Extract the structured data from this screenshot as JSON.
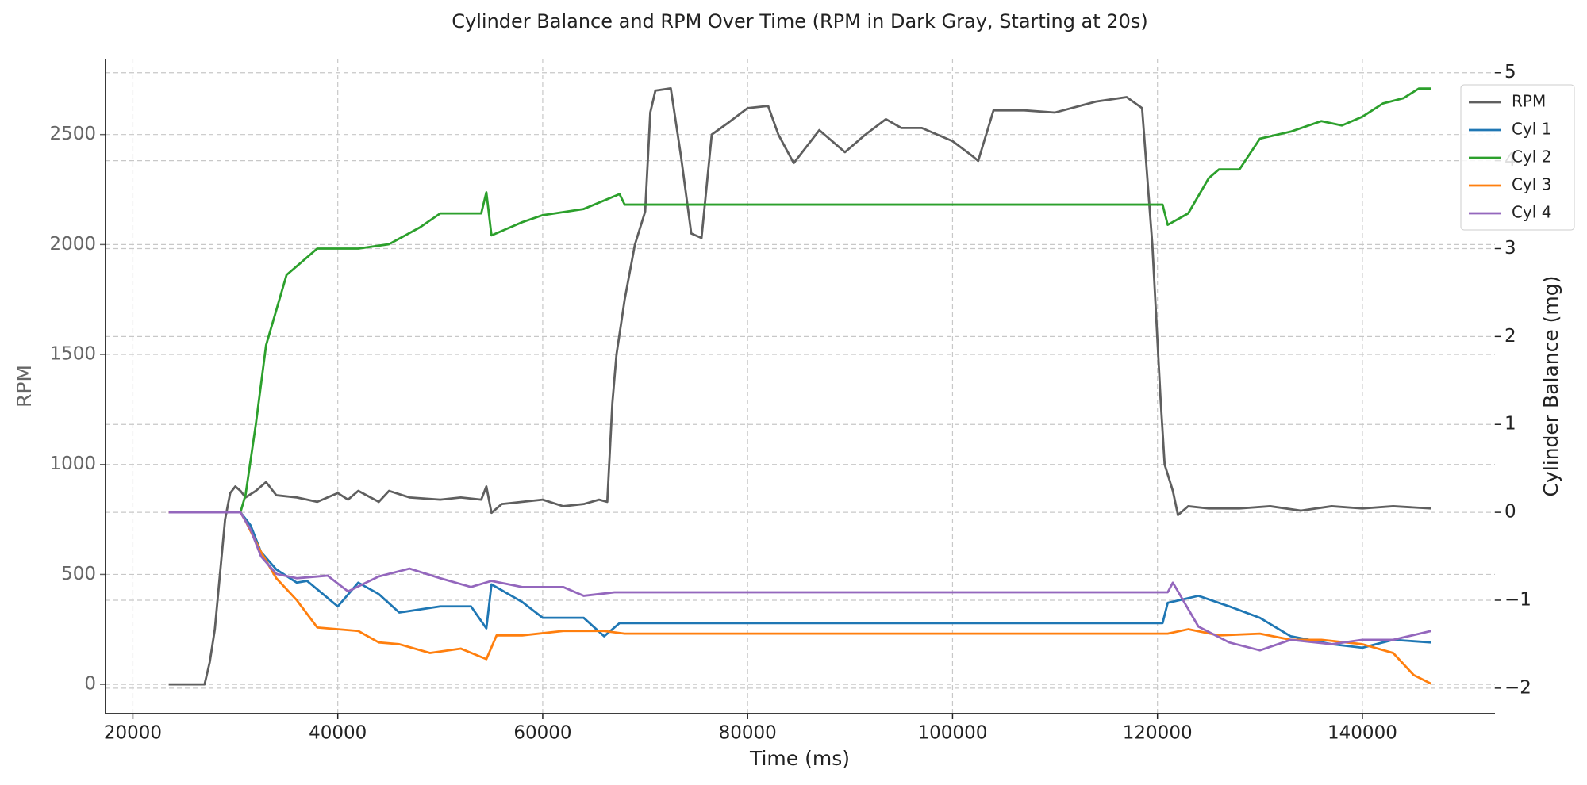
{
  "chart_data": {
    "type": "line",
    "title": "Cylinder Balance and RPM Over Time (RPM in Dark Gray, Starting at 20s)",
    "x_label": "Time (ms)",
    "y_label": "RPM",
    "y2_label": "Cylinder Balance (mg)",
    "xlim": [
      17333,
      152938
    ],
    "ylim": [
      -133,
      2845
    ],
    "y2lim": [
      -2.29,
      5.16
    ],
    "xticks": [
      20000,
      40000,
      60000,
      80000,
      100000,
      120000,
      140000
    ],
    "yticks": [
      0,
      500,
      1000,
      1500,
      2000,
      2500
    ],
    "y2ticks": [
      {
        "value": -2,
        "label": "−2"
      },
      {
        "value": -1,
        "label": "−1"
      },
      0,
      1,
      2,
      3,
      4,
      5
    ],
    "grid": true,
    "legend": "upper right",
    "series": [
      {
        "name": "RPM",
        "color": "#5f5f5f",
        "x": [
          23500,
          27000,
          27500,
          28000,
          28500,
          29000,
          29500,
          30000,
          30500,
          31000,
          32000,
          33000,
          34000,
          36000,
          38000,
          40000,
          41000,
          42000,
          44000,
          45000,
          47000,
          50000,
          52000,
          54000,
          54500,
          55000,
          56000,
          58000,
          60000,
          62000,
          64000,
          65500,
          66300,
          66800,
          67200,
          68000,
          69000,
          70000,
          70500,
          71000,
          72500,
          73500,
          74500,
          75500,
          76500,
          78000,
          80000,
          82000,
          83000,
          84500,
          85500,
          87000,
          89500,
          91500,
          93500,
          95000,
          97000,
          100000,
          102000,
          102500,
          104000,
          107000,
          110000,
          114000,
          117000,
          118500,
          119500,
          120300,
          120700,
          121500,
          122000,
          123000,
          125000,
          128000,
          131000,
          134000,
          137000,
          140000,
          143000,
          146700
        ],
        "values": [
          0,
          0,
          100,
          250,
          500,
          750,
          870,
          900,
          880,
          850,
          880,
          920,
          860,
          850,
          830,
          870,
          840,
          880,
          830,
          880,
          850,
          840,
          850,
          840,
          900,
          780,
          820,
          830,
          840,
          810,
          820,
          840,
          830,
          1280,
          1500,
          1750,
          2000,
          2150,
          2600,
          2700,
          2710,
          2400,
          2050,
          2030,
          2500,
          2550,
          2620,
          2630,
          2500,
          2370,
          2430,
          2520,
          2420,
          2500,
          2570,
          2530,
          2530,
          2470,
          2400,
          2380,
          2610,
          2610,
          2600,
          2650,
          2670,
          2620,
          2000,
          1300,
          1000,
          880,
          770,
          810,
          800,
          800,
          810,
          790,
          810,
          800,
          810,
          800
        ]
      },
      {
        "name": "Cyl 1",
        "color": "#1f77b4",
        "axis": "y2",
        "x": [
          23500,
          30500,
          31500,
          32500,
          34000,
          36000,
          37000,
          40000,
          42000,
          44000,
          46000,
          50000,
          53000,
          54500,
          55000,
          58000,
          60000,
          64000,
          66000,
          67500,
          120500,
          121000,
          124000,
          127000,
          130000,
          133000,
          137000,
          140000,
          143000,
          146700
        ],
        "values": [
          0,
          0,
          -0.15,
          -0.45,
          -0.65,
          -0.8,
          -0.78,
          -1.07,
          -0.8,
          -0.93,
          -1.14,
          -1.07,
          -1.07,
          -1.32,
          -0.82,
          -1.02,
          -1.2,
          -1.2,
          -1.41,
          -1.26,
          -1.26,
          -1.03,
          -0.95,
          -1.07,
          -1.2,
          -1.41,
          -1.5,
          -1.54,
          -1.45,
          -1.48
        ]
      },
      {
        "name": "Cyl 2",
        "color": "#2ca02c",
        "axis": "y2",
        "x": [
          23500,
          30500,
          31000,
          32000,
          33000,
          34000,
          35000,
          36000,
          38000,
          40000,
          42000,
          45000,
          48000,
          50000,
          54000,
          54500,
          55000,
          58000,
          60000,
          64000,
          67500,
          68000,
          120500,
          121000,
          123000,
          125000,
          126000,
          128000,
          130000,
          133000,
          136000,
          138000,
          140000,
          142000,
          144000,
          145500,
          146700
        ],
        "values": [
          0,
          0,
          0.2,
          1.0,
          1.9,
          2.3,
          2.7,
          2.8,
          3.0,
          3.0,
          3.0,
          3.05,
          3.24,
          3.4,
          3.4,
          3.64,
          3.15,
          3.3,
          3.38,
          3.45,
          3.62,
          3.5,
          3.5,
          3.27,
          3.4,
          3.8,
          3.9,
          3.9,
          4.25,
          4.33,
          4.45,
          4.4,
          4.5,
          4.65,
          4.71,
          4.82,
          4.82
        ]
      },
      {
        "name": "Cyl 3",
        "color": "#ff7f0e",
        "axis": "y2",
        "x": [
          23500,
          30500,
          31000,
          32500,
          34000,
          36000,
          38000,
          42000,
          44000,
          46000,
          49000,
          52000,
          54500,
          55500,
          58000,
          62000,
          66000,
          68000,
          121000,
          123000,
          126000,
          130000,
          133000,
          136000,
          140000,
          143000,
          145000,
          146700
        ],
        "values": [
          0,
          0,
          -0.1,
          -0.45,
          -0.75,
          -1.0,
          -1.31,
          -1.35,
          -1.48,
          -1.5,
          -1.6,
          -1.55,
          -1.67,
          -1.4,
          -1.4,
          -1.35,
          -1.35,
          -1.38,
          -1.38,
          -1.33,
          -1.4,
          -1.38,
          -1.45,
          -1.45,
          -1.5,
          -1.6,
          -1.85,
          -1.95
        ]
      },
      {
        "name": "Cyl 4",
        "color": "#9467bd",
        "axis": "y2",
        "x": [
          23500,
          30500,
          31500,
          32500,
          34000,
          36000,
          39000,
          41000,
          44000,
          47000,
          50000,
          53000,
          55000,
          58000,
          62000,
          64000,
          67000,
          121000,
          121500,
          122500,
          124000,
          127000,
          130000,
          133000,
          137000,
          140000,
          143000,
          146700
        ],
        "values": [
          0,
          0,
          -0.2,
          -0.5,
          -0.7,
          -0.75,
          -0.72,
          -0.9,
          -0.73,
          -0.64,
          -0.75,
          -0.85,
          -0.78,
          -0.85,
          -0.85,
          -0.95,
          -0.91,
          -0.91,
          -0.8,
          -1.0,
          -1.3,
          -1.48,
          -1.57,
          -1.45,
          -1.5,
          -1.45,
          -1.45,
          -1.35
        ]
      }
    ]
  }
}
